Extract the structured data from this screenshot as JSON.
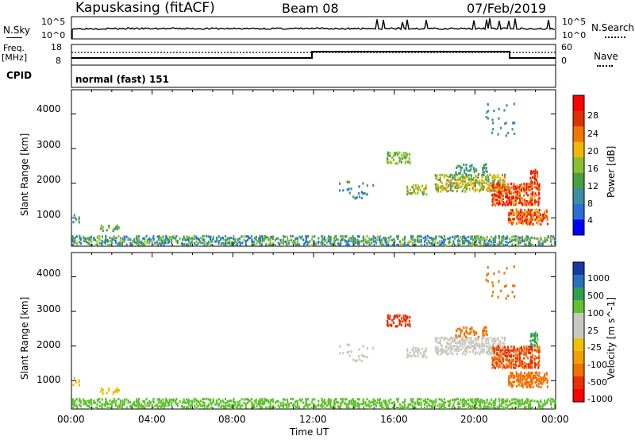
{
  "header": {
    "station": "Kapuskasing (fitACF)",
    "beam": "Beam 08",
    "date": "07/Feb/2019"
  },
  "top_panels": {
    "nsky_label": "N.Sky",
    "nsky_ticks": [
      "10^5",
      "10^0"
    ],
    "nsearch_label": "N.Search",
    "nsearch_ticks": [
      "10^5",
      "10^0"
    ],
    "freq_label_1": "Freq.",
    "freq_label_2": "[MHz]",
    "freq_ticks": [
      "18",
      "8"
    ],
    "nave_label": "Nave",
    "nave_ticks": [
      "60",
      "0"
    ],
    "cpid_label": "CPID",
    "cpid_value": "normal (fast) 151"
  },
  "time_axis": {
    "label": "Time UT",
    "ticks": [
      "00:00",
      "04:00",
      "08:00",
      "12:00",
      "16:00",
      "20:00",
      "00:00"
    ]
  },
  "colors": {
    "power_scale": [
      "#0000ff",
      "#2a6fd6",
      "#3a8fa0",
      "#4aa040",
      "#88c030",
      "#f0b800",
      "#f07800",
      "#e03000",
      "#ff0000"
    ],
    "velocity_scale": [
      "#ff0000",
      "#e83000",
      "#f07000",
      "#f0a000",
      "#f0c000",
      "#c8c8c0",
      "#c8c8c0",
      "#60c030",
      "#2ea050",
      "#2a70c0",
      "#1a3aa0"
    ]
  },
  "chart_data": [
    {
      "type": "heatmap",
      "name": "power-panel",
      "ylabel": "Slant Range [km]",
      "yticks": [
        "1000",
        "2000",
        "3000",
        "4000"
      ],
      "ylim": [
        180,
        4700
      ],
      "xlim_hours": [
        0,
        24
      ],
      "colorbar": {
        "label": "Power [dB]",
        "ticks": [
          "4",
          "8",
          "12",
          "16",
          "20",
          "24",
          "28"
        ],
        "range": [
          0,
          32
        ]
      },
      "regions": [
        {
          "t": [
            0.0,
            24.0
          ],
          "r": [
            200,
            480
          ],
          "v": [
            4,
            18
          ],
          "density": 0.55
        },
        {
          "t": [
            0.05,
            0.4
          ],
          "r": [
            850,
            1100
          ],
          "v": [
            8,
            14
          ],
          "density": 0.5
        },
        {
          "t": [
            1.4,
            2.4
          ],
          "r": [
            620,
            780
          ],
          "v": [
            8,
            16
          ],
          "density": 0.45
        },
        {
          "t": [
            13.2,
            15.0
          ],
          "r": [
            1550,
            2050
          ],
          "v": [
            6,
            14
          ],
          "density": 0.12
        },
        {
          "t": [
            15.6,
            16.8
          ],
          "r": [
            2550,
            2900
          ],
          "v": [
            12,
            18
          ],
          "density": 0.45
        },
        {
          "t": [
            16.6,
            17.6
          ],
          "r": [
            1650,
            1950
          ],
          "v": [
            12,
            22
          ],
          "density": 0.45
        },
        {
          "t": [
            18.0,
            21.5
          ],
          "r": [
            1750,
            2250
          ],
          "v": [
            10,
            24
          ],
          "density": 0.55
        },
        {
          "t": [
            19.0,
            20.6
          ],
          "r": [
            2250,
            2550
          ],
          "v": [
            8,
            14
          ],
          "density": 0.4
        },
        {
          "t": [
            20.8,
            23.2
          ],
          "r": [
            1350,
            2000
          ],
          "v": [
            20,
            32
          ],
          "density": 0.7
        },
        {
          "t": [
            21.6,
            23.6
          ],
          "r": [
            800,
            1250
          ],
          "v": [
            20,
            30
          ],
          "density": 0.6
        },
        {
          "t": [
            22.7,
            23.1
          ],
          "r": [
            2000,
            2400
          ],
          "v": [
            24,
            30
          ],
          "density": 0.7
        },
        {
          "t": [
            20.5,
            22.0
          ],
          "r": [
            3300,
            4300
          ],
          "v": [
            6,
            14
          ],
          "density": 0.08
        }
      ]
    },
    {
      "type": "heatmap",
      "name": "velocity-panel",
      "ylabel": "Slant Range [km]",
      "yticks": [
        "1000",
        "2000",
        "3000",
        "4000"
      ],
      "ylim": [
        180,
        4700
      ],
      "xlim_hours": [
        0,
        24
      ],
      "colorbar": {
        "label": "Velocity [m s^-1]",
        "ticks": [
          "1000",
          "500",
          "100",
          "25",
          "-25",
          "-100",
          "-500",
          "-1000"
        ]
      },
      "regions": [
        {
          "t": [
            0.0,
            24.0
          ],
          "r": [
            200,
            480
          ],
          "v": [
            25,
            100
          ],
          "density": 0.55
        },
        {
          "t": [
            0.05,
            0.4
          ],
          "r": [
            850,
            1100
          ],
          "v": [
            -100,
            -25
          ],
          "density": 0.5
        },
        {
          "t": [
            1.4,
            2.4
          ],
          "r": [
            620,
            780
          ],
          "v": [
            -100,
            -25
          ],
          "density": 0.45
        },
        {
          "t": [
            13.2,
            15.0
          ],
          "r": [
            1550,
            2050
          ],
          "v": [
            -25,
            25
          ],
          "density": 0.12
        },
        {
          "t": [
            15.6,
            16.8
          ],
          "r": [
            2550,
            2900
          ],
          "v": [
            -1000,
            -500
          ],
          "density": 0.45
        },
        {
          "t": [
            16.6,
            17.6
          ],
          "r": [
            1650,
            1950
          ],
          "v": [
            -25,
            25
          ],
          "density": 0.45
        },
        {
          "t": [
            18.0,
            21.5
          ],
          "r": [
            1750,
            2250
          ],
          "v": [
            -25,
            25
          ],
          "density": 0.55
        },
        {
          "t": [
            19.0,
            20.6
          ],
          "r": [
            2250,
            2550
          ],
          "v": [
            -500,
            -100
          ],
          "density": 0.4
        },
        {
          "t": [
            20.8,
            23.2
          ],
          "r": [
            1350,
            2000
          ],
          "v": [
            -1000,
            -100
          ],
          "density": 0.7
        },
        {
          "t": [
            21.6,
            23.6
          ],
          "r": [
            800,
            1250
          ],
          "v": [
            -500,
            -100
          ],
          "density": 0.6
        },
        {
          "t": [
            22.7,
            23.1
          ],
          "r": [
            2000,
            2400
          ],
          "v": [
            25,
            500
          ],
          "density": 0.7
        },
        {
          "t": [
            20.5,
            22.0
          ],
          "r": [
            3300,
            4300
          ],
          "v": [
            -500,
            -100
          ],
          "density": 0.08
        }
      ]
    }
  ]
}
